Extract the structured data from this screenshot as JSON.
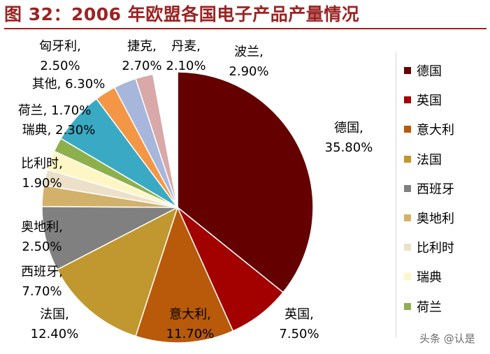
{
  "title": "图 32：2006 年欧盟各国电子产品产量情况",
  "watermark": "头条 @认是",
  "chart_data": {
    "type": "pie",
    "title": "图 32：2006 年欧盟各国电子产品产量情况",
    "start": "12 o'clock",
    "direction": "clockwise",
    "slices": [
      {
        "name": "德国",
        "value": 35.8,
        "label": "35.80%",
        "color": "#650000"
      },
      {
        "name": "英国",
        "value": 7.5,
        "label": "7.50%",
        "color": "#a30000"
      },
      {
        "name": "意大利",
        "value": 11.7,
        "label": "11.70%",
        "color": "#b85a09"
      },
      {
        "name": "法国",
        "value": 12.4,
        "label": "12.40%",
        "color": "#c0982f"
      },
      {
        "name": "西班牙",
        "value": 7.7,
        "label": "7.70%",
        "color": "#808080"
      },
      {
        "name": "奥地利",
        "value": 2.5,
        "label": "2.50%",
        "color": "#d2b26a"
      },
      {
        "name": "比利时",
        "value": 1.9,
        "label": "1.90%",
        "color": "#ece0c8"
      },
      {
        "name": "瑞典",
        "value": 2.3,
        "label": "2.30%",
        "color": "#fff6c5"
      },
      {
        "name": "荷兰",
        "value": 1.7,
        "label": "1.70%",
        "color": "#8db04d"
      },
      {
        "name": "其他",
        "value": 6.3,
        "label": "6.30%",
        "color": "#3aa9c4"
      },
      {
        "name": "匈牙利",
        "value": 2.5,
        "label": "2.50%",
        "color": "#f39645"
      },
      {
        "name": "捷克",
        "value": 2.7,
        "label": "2.70%",
        "color": "#a7b7db"
      },
      {
        "name": "丹麦",
        "value": 2.1,
        "label": "2.10%",
        "color": "#d9a8a8"
      },
      {
        "name": "波兰",
        "value": 2.9,
        "label": "2.90%",
        "color": "#ffffff"
      }
    ],
    "legend": {
      "placement": "right",
      "entries": [
        "德国",
        "英国",
        "意大利",
        "法国",
        "西班牙",
        "奥地利",
        "比利时",
        "瑞典",
        "荷兰"
      ]
    },
    "slice_labels": [
      {
        "text": [
          "德国,",
          "35.80%"
        ]
      },
      {
        "text": [
          "英国,",
          "7.50%"
        ]
      },
      {
        "text": [
          "意大利,",
          "11.70%"
        ]
      },
      {
        "text": [
          "法国,",
          "12.40%"
        ]
      },
      {
        "text": [
          "西班牙,",
          "7.70%"
        ]
      },
      {
        "text": [
          "奥地利,",
          "2.50%"
        ]
      },
      {
        "text": [
          "比利时,",
          "1.90%"
        ]
      },
      {
        "text": [
          "瑞典, 2.30%"
        ]
      },
      {
        "text": [
          "荷兰, 1.70%"
        ]
      },
      {
        "text": [
          "其他, 6.30%"
        ]
      },
      {
        "text": [
          "匈牙利,",
          "2.50%"
        ]
      },
      {
        "text": [
          "捷克,",
          "2.70%"
        ]
      },
      {
        "text": [
          "丹麦,",
          "2.10%"
        ]
      },
      {
        "text": [
          "波兰,",
          "2.90%"
        ]
      }
    ]
  }
}
